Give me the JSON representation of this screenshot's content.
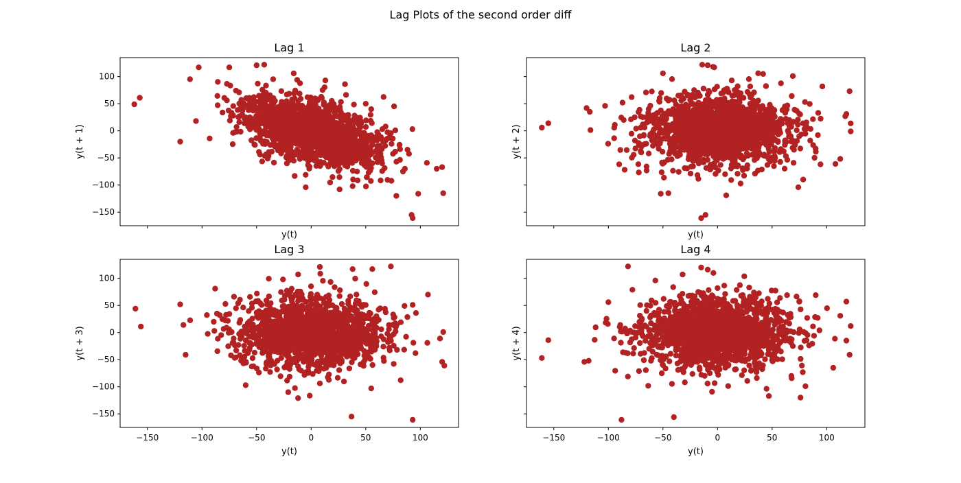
{
  "figure": {
    "title": "Lag Plots of the second order diff"
  },
  "chart_data": [
    {
      "type": "scatter",
      "title": "Lag 1",
      "xlabel": "y(t)",
      "ylabel": "y(t + 1)",
      "xlim": [
        -175,
        135
      ],
      "ylim": [
        -175,
        135
      ],
      "x_ticks": [
        -150,
        -100,
        -50,
        0,
        50,
        100
      ],
      "y_ticks": [
        -150,
        -100,
        -50,
        0,
        50,
        100
      ],
      "show_x_tick_labels": false,
      "show_y_tick_labels": true,
      "marker_color": "#b22222",
      "cloud": {
        "n": 1600,
        "center": [
          0,
          0
        ],
        "sx": 32,
        "sy": 32,
        "corr": -0.5,
        "seed": 11
      },
      "outliers": [
        [
          -162,
          49
        ],
        [
          -157,
          61
        ],
        [
          -120,
          -20
        ],
        [
          -103,
          117
        ],
        [
          -93,
          -14
        ],
        [
          -75,
          117
        ],
        [
          -50,
          121
        ],
        [
          -43,
          122
        ],
        [
          -16,
          106
        ],
        [
          13,
          93
        ],
        [
          -5,
          -104
        ],
        [
          78,
          -120
        ],
        [
          98,
          -116
        ],
        [
          121,
          -115
        ],
        [
          115,
          -70
        ],
        [
          120,
          -67
        ],
        [
          92,
          -155
        ],
        [
          93,
          -161
        ],
        [
          38,
          -102
        ],
        [
          26,
          -108
        ],
        [
          106,
          -59
        ],
        [
          55,
          40
        ],
        [
          31,
          86
        ],
        [
          50,
          50
        ]
      ]
    },
    {
      "type": "scatter",
      "title": "Lag 2",
      "xlabel": "y(t)",
      "ylabel": "y(t + 2)",
      "xlim": [
        -175,
        135
      ],
      "ylim": [
        -175,
        135
      ],
      "x_ticks": [
        -150,
        -100,
        -50,
        0,
        50,
        100
      ],
      "y_ticks": [
        -150,
        -100,
        -50,
        0,
        50,
        100
      ],
      "show_x_tick_labels": false,
      "show_y_tick_labels": false,
      "marker_color": "#b22222",
      "cloud": {
        "n": 1600,
        "center": [
          0,
          0
        ],
        "sx": 33,
        "sy": 32,
        "corr": 0.0,
        "seed": 23
      },
      "outliers": [
        [
          -161,
          6
        ],
        [
          -155,
          14
        ],
        [
          -120,
          42
        ],
        [
          -117,
          35
        ],
        [
          -103,
          46
        ],
        [
          -87,
          52
        ],
        [
          -50,
          106
        ],
        [
          -14,
          122
        ],
        [
          -9,
          121
        ],
        [
          -4,
          118
        ],
        [
          -3,
          117
        ],
        [
          13,
          93
        ],
        [
          -15,
          -161
        ],
        [
          -11,
          -155
        ],
        [
          8,
          -119
        ],
        [
          -52,
          -116
        ],
        [
          -45,
          -115
        ],
        [
          74,
          -104
        ],
        [
          108,
          -61
        ],
        [
          121,
          73
        ],
        [
          122,
          -1
        ],
        [
          118,
          31
        ],
        [
          117,
          27
        ],
        [
          96,
          82
        ],
        [
          69,
          101
        ]
      ]
    },
    {
      "type": "scatter",
      "title": "Lag 3",
      "xlabel": "y(t)",
      "ylabel": "y(t + 3)",
      "xlim": [
        -175,
        135
      ],
      "ylim": [
        -175,
        135
      ],
      "x_ticks": [
        -150,
        -100,
        -50,
        0,
        50,
        100
      ],
      "y_ticks": [
        -150,
        -100,
        -50,
        0,
        50,
        100
      ],
      "show_x_tick_labels": true,
      "show_y_tick_labels": true,
      "marker_color": "#b22222",
      "cloud": {
        "n": 1600,
        "center": [
          0,
          0
        ],
        "sx": 33,
        "sy": 32,
        "corr": 0.0,
        "seed": 37
      },
      "outliers": [
        [
          -161,
          44
        ],
        [
          -156,
          11
        ],
        [
          -120,
          52
        ],
        [
          -117,
          14
        ],
        [
          -115,
          -41
        ],
        [
          -88,
          81
        ],
        [
          -60,
          -97
        ],
        [
          8,
          121
        ],
        [
          38,
          117
        ],
        [
          56,
          117
        ],
        [
          73,
          122
        ],
        [
          107,
          70
        ],
        [
          37,
          -155
        ],
        [
          93,
          -161
        ],
        [
          82,
          -88
        ],
        [
          55,
          -103
        ],
        [
          120,
          -54
        ],
        [
          121,
          1
        ],
        [
          122,
          -61
        ],
        [
          118,
          -11
        ],
        [
          96,
          36
        ],
        [
          93,
          51
        ],
        [
          -12,
          -121
        ],
        [
          -21,
          -110
        ]
      ]
    },
    {
      "type": "scatter",
      "title": "Lag 4",
      "xlabel": "y(t)",
      "ylabel": "y(t + 4)",
      "xlim": [
        -175,
        135
      ],
      "ylim": [
        -175,
        135
      ],
      "x_ticks": [
        -150,
        -100,
        -50,
        0,
        50,
        100
      ],
      "y_ticks": [
        -150,
        -100,
        -50,
        0,
        50,
        100
      ],
      "show_x_tick_labels": true,
      "show_y_tick_labels": false,
      "marker_color": "#b22222",
      "cloud": {
        "n": 1600,
        "center": [
          0,
          0
        ],
        "sx": 33,
        "sy": 32,
        "corr": 0.0,
        "seed": 53
      },
      "outliers": [
        [
          -161,
          -47
        ],
        [
          -155,
          -14
        ],
        [
          -122,
          -54
        ],
        [
          -118,
          -52
        ],
        [
          -88,
          -161
        ],
        [
          -82,
          122
        ],
        [
          -40,
          -156
        ],
        [
          -15,
          120
        ],
        [
          -9,
          116
        ],
        [
          0,
          82
        ],
        [
          29,
          83
        ],
        [
          47,
          -117
        ],
        [
          76,
          -120
        ],
        [
          106,
          -65
        ],
        [
          118,
          -15
        ],
        [
          121,
          -41
        ],
        [
          122,
          12
        ],
        [
          118,
          57
        ],
        [
          90,
          69
        ],
        [
          -100,
          56
        ],
        [
          -78,
          79
        ],
        [
          -57,
          96
        ],
        [
          -50,
          -60
        ],
        [
          -32,
          107
        ]
      ]
    }
  ]
}
